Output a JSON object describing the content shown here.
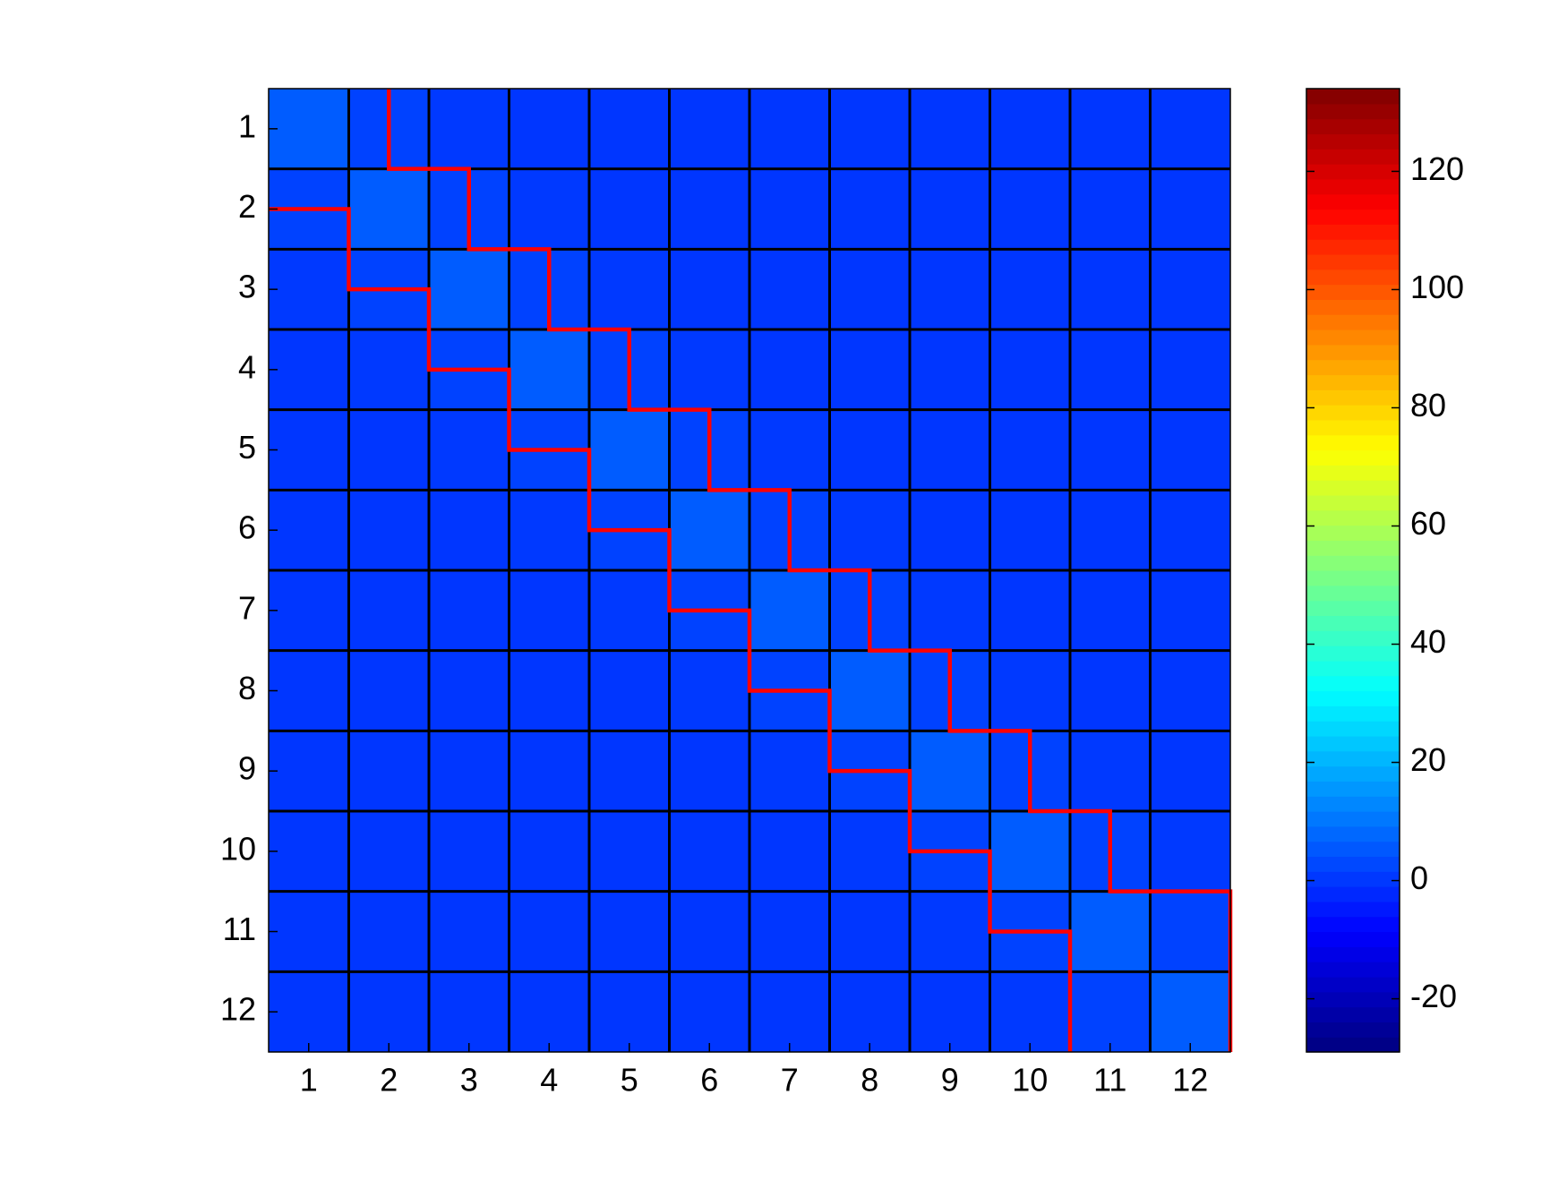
{
  "chart_data": {
    "type": "heatmap",
    "colormap": "jet",
    "xlim": [
      0.5,
      12.5
    ],
    "ylim": [
      0.5,
      12.5
    ],
    "y_direction": "reverse",
    "xticks": [
      1,
      2,
      3,
      4,
      5,
      6,
      7,
      8,
      9,
      10,
      11,
      12
    ],
    "yticks": [
      1,
      2,
      3,
      4,
      5,
      6,
      7,
      8,
      9,
      10,
      11,
      12
    ],
    "values": [
      [
        6,
        2,
        0.5,
        0,
        0,
        0,
        0,
        0,
        0,
        0,
        0,
        0
      ],
      [
        2,
        6,
        2,
        0.5,
        0,
        0,
        0,
        0,
        0,
        0,
        0,
        0
      ],
      [
        0.5,
        2,
        6,
        2,
        0.5,
        0,
        0,
        0,
        0,
        0,
        0,
        0
      ],
      [
        0,
        0.5,
        2,
        6,
        2,
        0.5,
        0,
        0,
        0,
        0,
        0,
        0
      ],
      [
        0,
        0,
        0.5,
        2,
        6,
        2,
        0.5,
        0,
        0,
        0,
        0,
        0
      ],
      [
        0,
        0,
        0,
        0.5,
        2,
        6,
        2,
        0.5,
        0,
        0,
        0,
        0
      ],
      [
        0,
        0,
        0,
        0,
        0.5,
        2,
        6,
        2,
        0.5,
        0,
        0,
        0
      ],
      [
        0,
        0,
        0,
        0,
        0,
        0.5,
        2,
        6,
        2,
        0.5,
        0,
        0
      ],
      [
        0,
        0,
        0,
        0,
        0,
        0,
        0.5,
        2,
        6,
        2,
        0.5,
        0
      ],
      [
        0,
        0,
        0,
        0,
        0,
        0,
        0,
        0.5,
        2,
        6,
        2,
        0.5
      ],
      [
        0,
        0,
        0,
        0,
        0,
        0,
        0,
        0,
        0.5,
        2,
        6,
        2
      ],
      [
        0,
        0,
        0,
        0,
        0,
        0,
        0,
        0,
        0,
        0.5,
        2,
        6
      ]
    ],
    "colorbar": {
      "lim": [
        -29,
        134
      ],
      "ticks": [
        -20,
        0,
        20,
        40,
        60,
        80,
        100,
        120
      ]
    }
  }
}
